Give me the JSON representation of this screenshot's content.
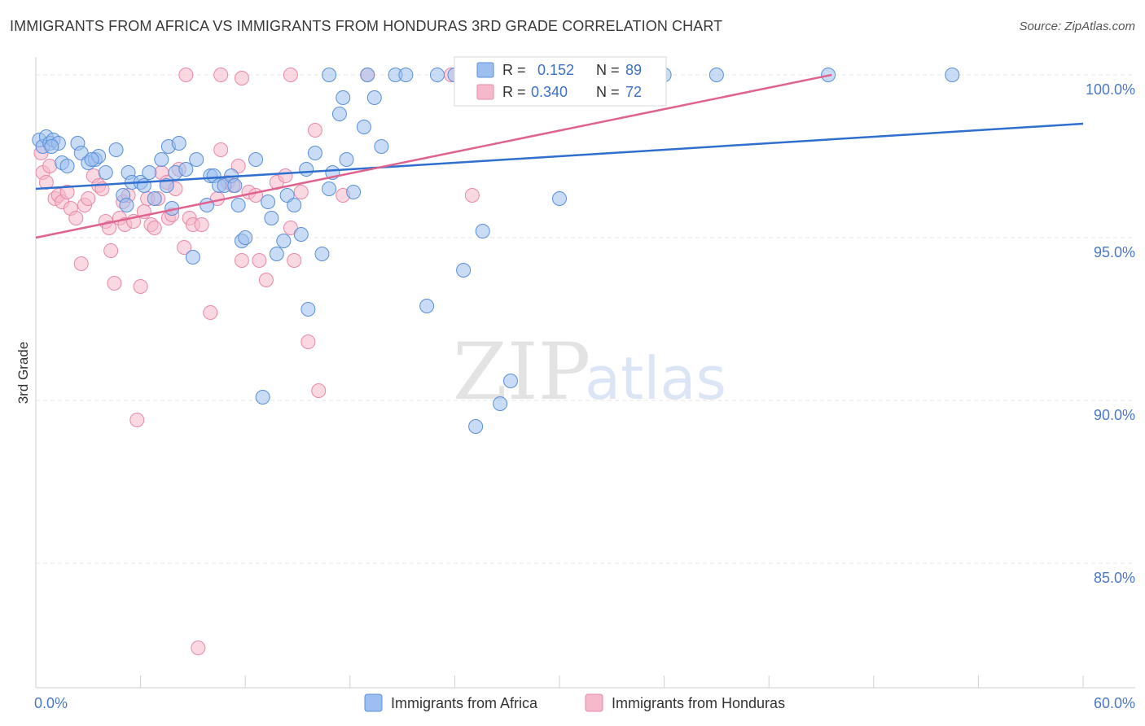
{
  "header": {
    "title": "IMMIGRANTS FROM AFRICA VS IMMIGRANTS FROM HONDURAS 3RD GRADE CORRELATION CHART",
    "source": "Source: ZipAtlas.com"
  },
  "watermark": {
    "zip": "ZIP",
    "atlas": "atlas"
  },
  "colors": {
    "blue_fill": "#9dbfef",
    "blue_stroke": "#5a8fd8",
    "blue_line": "#2e6fcf",
    "pink_fill": "#f6b8cb",
    "pink_stroke": "#e888a8",
    "pink_line": "#e0628f",
    "grid": "#e4e4e4",
    "axis_text": "#4a78c8"
  },
  "chart_data": {
    "type": "scatter",
    "title": "IMMIGRANTS FROM AFRICA VS IMMIGRANTS FROM HONDURAS 3RD GRADE CORRELATION CHART",
    "xlabel": "",
    "ylabel": "3rd Grade",
    "xlim": [
      0,
      60
    ],
    "ylim": [
      80.8,
      100.8
    ],
    "x_tick_labels": [
      "0.0%",
      "60.0%"
    ],
    "y_ticks": [
      85,
      90,
      95,
      100
    ],
    "y_tick_labels": [
      "85.0%",
      "90.0%",
      "95.0%",
      "100.0%"
    ],
    "legend_position": "top-center",
    "stats": [
      {
        "r_label": "R =",
        "r_value": "0.152",
        "n_label": "N =",
        "n_value": "89"
      },
      {
        "r_label": "R =",
        "r_value": "0.340",
        "n_label": "N =",
        "n_value": "72"
      }
    ],
    "series": [
      {
        "name": "Immigrants from Africa",
        "trend": {
          "x": [
            0,
            60
          ],
          "y": [
            96.5,
            98.5
          ]
        },
        "points": [
          [
            0.2,
            98.0
          ],
          [
            0.4,
            97.8
          ],
          [
            0.6,
            98.1
          ],
          [
            0.8,
            97.9
          ],
          [
            1.0,
            98.0
          ],
          [
            1.3,
            97.9
          ],
          [
            1.5,
            97.3
          ],
          [
            1.8,
            97.2
          ],
          [
            2.4,
            97.9
          ],
          [
            2.6,
            97.6
          ],
          [
            3.0,
            97.3
          ],
          [
            3.4,
            97.4
          ],
          [
            3.6,
            97.5
          ],
          [
            4.0,
            97.0
          ],
          [
            4.6,
            97.7
          ],
          [
            5.0,
            96.3
          ],
          [
            5.2,
            96.0
          ],
          [
            5.3,
            97.0
          ],
          [
            5.5,
            96.7
          ],
          [
            6.0,
            96.7
          ],
          [
            6.2,
            96.6
          ],
          [
            6.5,
            97.0
          ],
          [
            6.8,
            96.2
          ],
          [
            7.2,
            97.4
          ],
          [
            7.5,
            96.6
          ],
          [
            7.6,
            97.8
          ],
          [
            7.8,
            95.9
          ],
          [
            8.0,
            97.0
          ],
          [
            8.2,
            97.9
          ],
          [
            8.6,
            97.1
          ],
          [
            9.0,
            94.4
          ],
          [
            9.2,
            97.4
          ],
          [
            9.8,
            96.0
          ],
          [
            10.0,
            96.9
          ],
          [
            10.2,
            96.9
          ],
          [
            10.5,
            96.6
          ],
          [
            10.8,
            96.6
          ],
          [
            11.2,
            96.9
          ],
          [
            11.6,
            96.0
          ],
          [
            11.8,
            94.9
          ],
          [
            12.0,
            95.0
          ],
          [
            12.6,
            97.4
          ],
          [
            13.0,
            90.1
          ],
          [
            13.3,
            96.1
          ],
          [
            13.5,
            95.6
          ],
          [
            13.8,
            94.5
          ],
          [
            14.2,
            94.9
          ],
          [
            14.4,
            96.3
          ],
          [
            14.8,
            96.0
          ],
          [
            15.2,
            95.1
          ],
          [
            15.5,
            97.1
          ],
          [
            15.6,
            92.8
          ],
          [
            16.0,
            97.6
          ],
          [
            16.4,
            94.5
          ],
          [
            16.8,
            96.5
          ],
          [
            17.0,
            97.0
          ],
          [
            17.4,
            98.8
          ],
          [
            17.6,
            99.3
          ],
          [
            17.8,
            97.4
          ],
          [
            18.2,
            96.4
          ],
          [
            18.8,
            98.4
          ],
          [
            19.0,
            100.0
          ],
          [
            19.4,
            99.3
          ],
          [
            19.8,
            97.8
          ],
          [
            20.6,
            100.0
          ],
          [
            21.2,
            100.0
          ],
          [
            22.4,
            92.9
          ],
          [
            23.0,
            100.0
          ],
          [
            24.0,
            100.0
          ],
          [
            24.5,
            94.0
          ],
          [
            24.8,
            100.0
          ],
          [
            25.2,
            89.2
          ],
          [
            25.6,
            95.2
          ],
          [
            26.0,
            100.0
          ],
          [
            26.6,
            89.9
          ],
          [
            27.2,
            90.6
          ],
          [
            28.0,
            100.0
          ],
          [
            28.8,
            100.0
          ],
          [
            30.0,
            96.2
          ],
          [
            32.0,
            100.0
          ],
          [
            34.4,
            100.0
          ],
          [
            36.0,
            100.0
          ],
          [
            39.0,
            100.0
          ],
          [
            45.4,
            100.0
          ],
          [
            52.5,
            100.0
          ],
          [
            16.8,
            100.0
          ],
          [
            11.4,
            96.6
          ],
          [
            3.2,
            97.4
          ],
          [
            0.9,
            97.8
          ]
        ]
      },
      {
        "name": "Immigrants from Honduras",
        "trend": {
          "x": [
            0,
            45.6
          ],
          "y": [
            95.0,
            100.0
          ]
        },
        "points": [
          [
            0.3,
            97.6
          ],
          [
            0.4,
            97.0
          ],
          [
            0.6,
            96.7
          ],
          [
            0.8,
            97.2
          ],
          [
            1.1,
            96.2
          ],
          [
            1.3,
            96.3
          ],
          [
            1.5,
            96.1
          ],
          [
            1.8,
            96.4
          ],
          [
            2.0,
            95.9
          ],
          [
            2.3,
            95.6
          ],
          [
            2.6,
            94.2
          ],
          [
            2.8,
            96.0
          ],
          [
            3.0,
            96.2
          ],
          [
            3.3,
            96.9
          ],
          [
            3.6,
            96.6
          ],
          [
            3.8,
            96.5
          ],
          [
            4.0,
            95.5
          ],
          [
            4.2,
            95.3
          ],
          [
            4.3,
            94.6
          ],
          [
            4.5,
            93.6
          ],
          [
            4.8,
            95.6
          ],
          [
            5.0,
            96.1
          ],
          [
            5.1,
            95.4
          ],
          [
            5.3,
            96.3
          ],
          [
            5.6,
            95.5
          ],
          [
            5.8,
            89.4
          ],
          [
            6.0,
            93.5
          ],
          [
            6.2,
            95.8
          ],
          [
            6.4,
            96.2
          ],
          [
            6.6,
            95.4
          ],
          [
            6.8,
            95.3
          ],
          [
            7.0,
            96.2
          ],
          [
            7.2,
            97.0
          ],
          [
            7.5,
            96.7
          ],
          [
            7.6,
            95.6
          ],
          [
            7.8,
            95.7
          ],
          [
            8.0,
            96.5
          ],
          [
            8.2,
            97.1
          ],
          [
            8.5,
            94.7
          ],
          [
            8.8,
            95.6
          ],
          [
            9.0,
            95.4
          ],
          [
            9.3,
            82.4
          ],
          [
            9.5,
            95.4
          ],
          [
            10.0,
            92.7
          ],
          [
            10.4,
            96.2
          ],
          [
            10.6,
            97.7
          ],
          [
            11.0,
            96.7
          ],
          [
            11.3,
            96.6
          ],
          [
            11.6,
            97.2
          ],
          [
            11.8,
            94.3
          ],
          [
            12.2,
            96.4
          ],
          [
            12.6,
            96.3
          ],
          [
            12.8,
            94.3
          ],
          [
            13.2,
            93.7
          ],
          [
            13.8,
            96.7
          ],
          [
            14.3,
            96.9
          ],
          [
            14.6,
            95.3
          ],
          [
            14.8,
            94.3
          ],
          [
            15.2,
            96.4
          ],
          [
            15.6,
            91.8
          ],
          [
            16.0,
            98.3
          ],
          [
            16.2,
            90.3
          ],
          [
            17.6,
            96.3
          ],
          [
            19.0,
            100.0
          ],
          [
            8.6,
            100.0
          ],
          [
            10.6,
            100.0
          ],
          [
            11.8,
            99.9
          ],
          [
            14.6,
            100.0
          ],
          [
            23.8,
            100.0
          ],
          [
            25.0,
            96.3
          ],
          [
            26.3,
            100.0
          ],
          [
            30.4,
            100.0
          ]
        ]
      }
    ]
  },
  "legend": {
    "items": [
      {
        "label": "Immigrants from Africa"
      },
      {
        "label": "Immigrants from Honduras"
      }
    ]
  }
}
